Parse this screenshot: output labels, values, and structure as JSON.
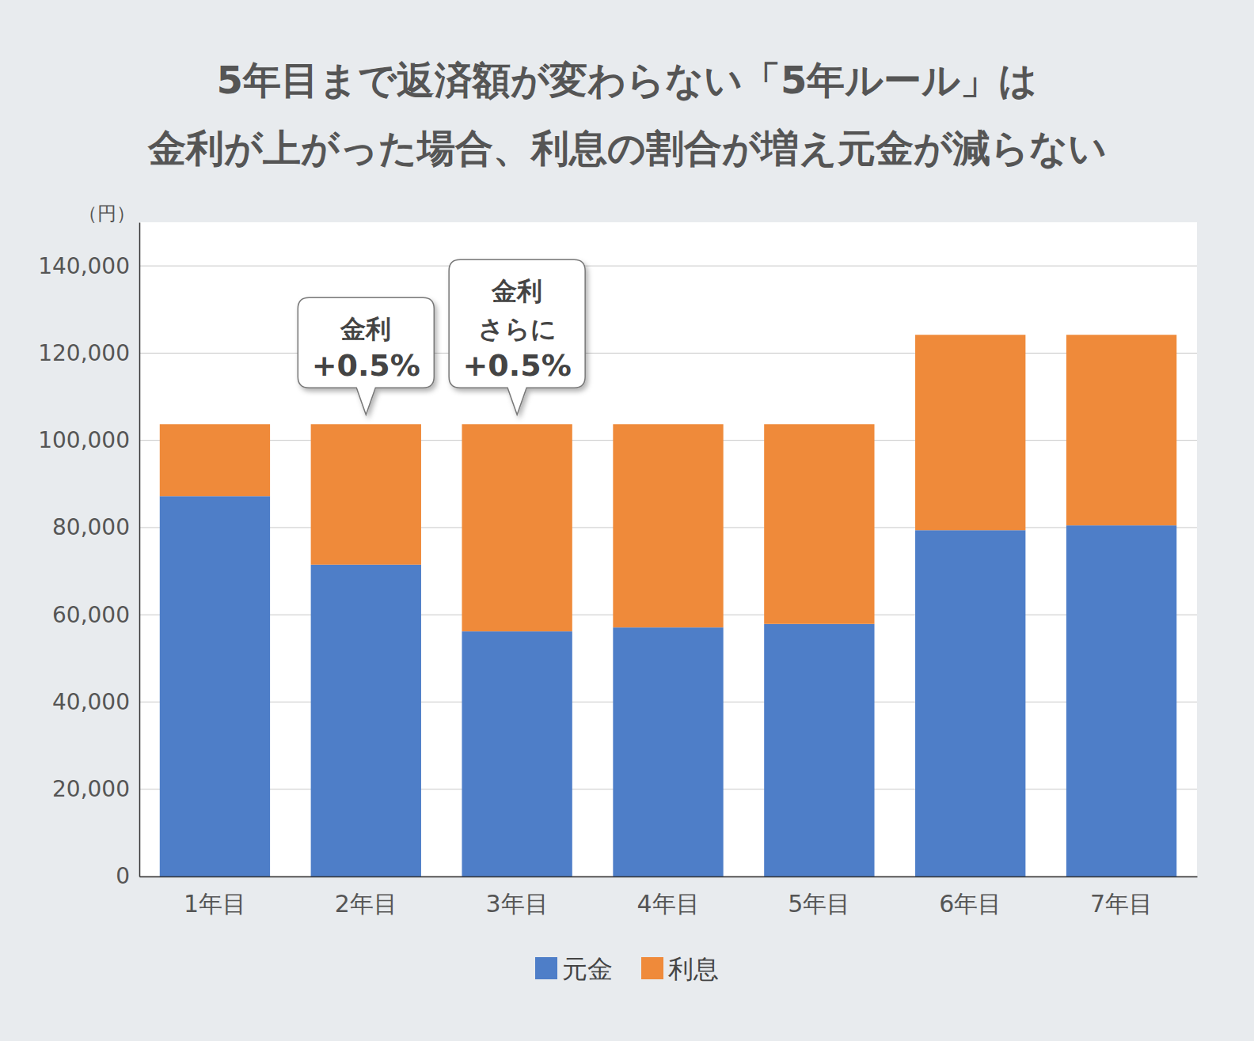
{
  "chart_data": {
    "type": "bar",
    "title": [
      "5年目まで返済額が変わらない「5年ルール」は",
      "金利が上がった場合、利息の割合が増え元金が減らない"
    ],
    "y_label": "（円）",
    "categories": [
      "1年目",
      "2年目",
      "3年目",
      "4年目",
      "5年目",
      "6年目",
      "7年目"
    ],
    "series": [
      {
        "name": "元金",
        "color": "#4e7ec8",
        "values": [
          87200,
          71500,
          56200,
          57100,
          57900,
          79400,
          80500
        ]
      },
      {
        "name": "利息",
        "color": "#ef8a3a",
        "values": [
          16500,
          32200,
          47500,
          46600,
          45800,
          44800,
          43700
        ]
      }
    ],
    "stacked": true,
    "ylim": [
      0,
      150000
    ],
    "yticks": [
      0,
      {
        "value": 20000,
        "label": "20,000"
      },
      {
        "value": 40000,
        "label": "40,000"
      },
      {
        "value": 60000,
        "label": "60,000"
      },
      {
        "value": 80000,
        "label": "80,000"
      },
      {
        "value": 100000,
        "label": "100,000"
      },
      {
        "value": 120000,
        "label": "120,000"
      },
      {
        "value": 140000,
        "label": "140,000"
      }
    ],
    "grid": true,
    "legend": "bottom",
    "annotations": [
      {
        "category": "2年目",
        "text": [
          "金利",
          "+0.5%"
        ]
      },
      {
        "category": "3年目",
        "text": [
          "金利",
          "さらに",
          "+0.5%"
        ]
      }
    ]
  }
}
